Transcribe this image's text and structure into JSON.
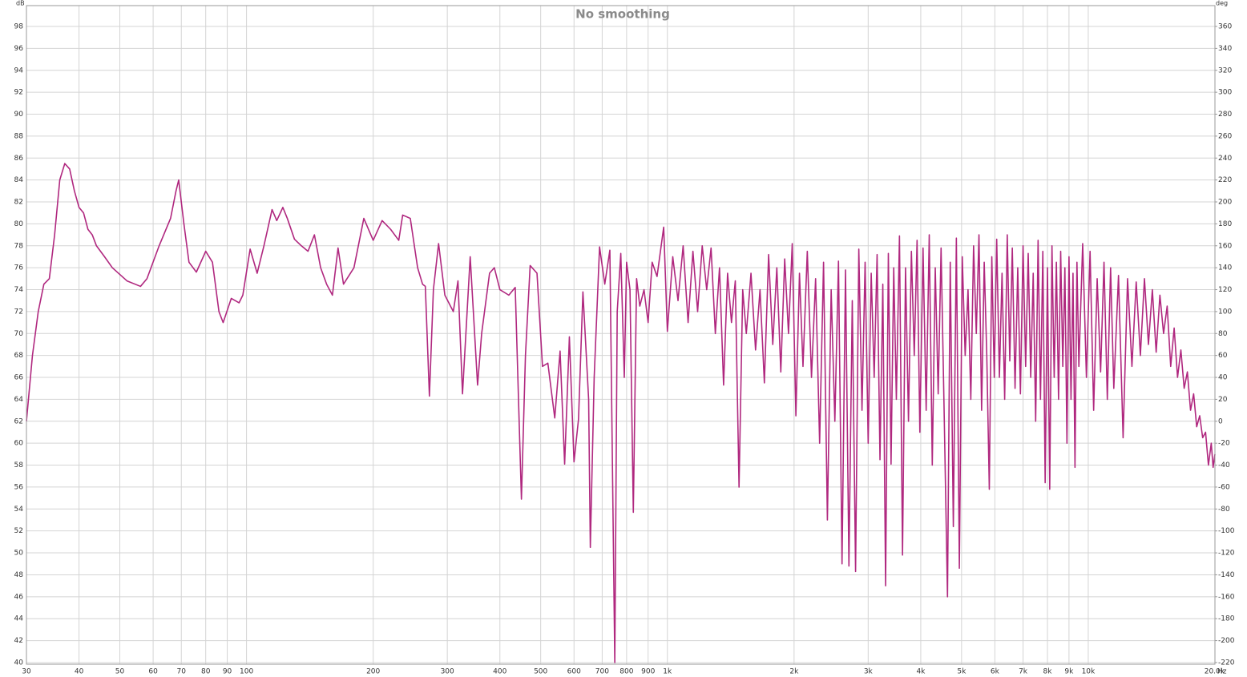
{
  "chart_data": {
    "type": "line",
    "title": "No smoothing",
    "x_label": "Hz",
    "y_label": "dB",
    "y2_label": "deg",
    "xscale": "log",
    "grid": true,
    "color": "#b0287f",
    "xlim": [
      30,
      20000
    ],
    "ylim": [
      39.85,
      99.9
    ],
    "y2lim": [
      -221.5,
      379
    ],
    "xticks": [
      30,
      40,
      50,
      60,
      70,
      80,
      90,
      100,
      200,
      300,
      400,
      500,
      600,
      700,
      800,
      900,
      {
        "value": 1000,
        "label": "1k"
      },
      {
        "value": 2000,
        "label": "2k"
      },
      {
        "value": 3000,
        "label": "3k"
      },
      {
        "value": 4000,
        "label": "4k"
      },
      {
        "value": 5000,
        "label": "5k"
      },
      {
        "value": 6000,
        "label": "6k"
      },
      {
        "value": 7000,
        "label": "7k"
      },
      {
        "value": 8000,
        "label": "8k"
      },
      {
        "value": 9000,
        "label": "9k"
      },
      {
        "value": 10000,
        "label": "10k"
      },
      {
        "value": 20000,
        "label": "20.0k"
      }
    ],
    "yticks": [
      40,
      42,
      44,
      46,
      48,
      50,
      52,
      54,
      56,
      58,
      60,
      62,
      64,
      66,
      68,
      70,
      72,
      74,
      76,
      78,
      80,
      82,
      84,
      86,
      88,
      90,
      92,
      94,
      96,
      98
    ],
    "y2ticks": [
      -220,
      -200,
      -180,
      -160,
      -140,
      -120,
      -100,
      -80,
      -60,
      -40,
      -20,
      0,
      20,
      40,
      60,
      80,
      100,
      120,
      140,
      160,
      180,
      200,
      220,
      240,
      260,
      280,
      300,
      320,
      340,
      360
    ],
    "x": [
      30,
      31,
      32,
      33,
      34,
      35,
      36,
      37,
      38,
      39,
      40,
      41,
      42,
      43,
      44,
      46,
      48,
      52,
      56,
      58,
      62,
      66,
      68,
      69,
      71,
      73,
      76,
      80,
      83,
      86,
      88,
      92,
      96,
      98,
      102,
      106,
      110,
      115,
      118,
      122,
      125,
      130,
      135,
      140,
      145,
      150,
      155,
      160,
      165,
      170,
      180,
      190,
      200,
      210,
      220,
      230,
      235,
      245,
      255,
      262,
      266,
      272,
      278,
      286,
      296,
      310,
      318,
      326,
      340,
      354,
      362,
      378,
      388,
      400,
      420,
      435,
      450,
      460,
      472,
      490,
      505,
      520,
      540,
      556,
      570,
      585,
      600,
      615,
      630,
      650,
      656,
      670,
      690,
      710,
      730,
      750,
      760,
      775,
      790,
      800,
      815,
      830,
      845,
      860,
      880,
      900,
      920,
      945,
      980,
      1000,
      1030,
      1060,
      1090,
      1120,
      1150,
      1180,
      1210,
      1240,
      1270,
      1300,
      1330,
      1360,
      1390,
      1420,
      1450,
      1480,
      1510,
      1540,
      1580,
      1620,
      1660,
      1700,
      1740,
      1780,
      1820,
      1860,
      1900,
      1940,
      1980,
      2020,
      2060,
      2100,
      2150,
      2200,
      2250,
      2300,
      2350,
      2400,
      2450,
      2500,
      2550,
      2600,
      2650,
      2700,
      2750,
      2800,
      2850,
      2900,
      2950,
      3000,
      3050,
      3100,
      3150,
      3200,
      3250,
      3300,
      3350,
      3400,
      3450,
      3500,
      3560,
      3620,
      3680,
      3740,
      3800,
      3860,
      3920,
      3980,
      4050,
      4120,
      4190,
      4260,
      4330,
      4400,
      4470,
      4550,
      4630,
      4700,
      4780,
      4860,
      4940,
      5020,
      5100,
      5180,
      5260,
      5340,
      5420,
      5500,
      5580,
      5660,
      5740,
      5820,
      5900,
      5980,
      6060,
      6150,
      6240,
      6330,
      6420,
      6510,
      6600,
      6700,
      6800,
      6900,
      7000,
      7100,
      7200,
      7300,
      7400,
      7500,
      7600,
      7700,
      7800,
      7900,
      8000,
      8100,
      8200,
      8300,
      8400,
      8500,
      8600,
      8700,
      8800,
      8900,
      9000,
      9100,
      9200,
      9300,
      9400,
      9500,
      9700,
      9900,
      10100,
      10300,
      10500,
      10700,
      10900,
      11100,
      11300,
      11500,
      11800,
      12100,
      12400,
      12700,
      13000,
      13300,
      13600,
      13900,
      14200,
      14500,
      14800,
      15100,
      15400,
      15700,
      16000,
      16300,
      16600,
      16900,
      17200,
      17500,
      17800,
      18100,
      18400,
      18700,
      19000,
      19300,
      19600,
      19800,
      20000
    ],
    "values": [
      62,
      68,
      72,
      74.5,
      75,
      79,
      84,
      85.5,
      85,
      83,
      81.5,
      81,
      79.5,
      79,
      78,
      77,
      76,
      74.8,
      74.3,
      75,
      78,
      80.5,
      83,
      84,
      80,
      76.5,
      75.6,
      77.5,
      76.5,
      72,
      71,
      73.2,
      72.8,
      73.5,
      77.7,
      75.5,
      78,
      81.3,
      80.3,
      81.5,
      80.5,
      78.6,
      78,
      77.5,
      79,
      76,
      74.5,
      73.5,
      77.8,
      74.5,
      76,
      80.5,
      78.5,
      80.3,
      79.5,
      78.5,
      80.8,
      80.5,
      76,
      74.5,
      74.3,
      64.3,
      74,
      78.2,
      73.5,
      72,
      74.8,
      64.5,
      77,
      65.3,
      70,
      75.5,
      76,
      74,
      73.5,
      74.2,
      54.9,
      68,
      76.2,
      75.5,
      67,
      67.3,
      62.3,
      68.4,
      58.1,
      69.7,
      58.3,
      62.2,
      73.8,
      64,
      50.5,
      66,
      77.9,
      74.5,
      77.6,
      40,
      72,
      77.3,
      66,
      76.5,
      74,
      53.7,
      75,
      72.5,
      74,
      71,
      76.5,
      75.2,
      79.7,
      70.2,
      77,
      73,
      78,
      71,
      77.5,
      72,
      78,
      74,
      77.8,
      70,
      76,
      65.3,
      75.5,
      71,
      74.8,
      56,
      74,
      70,
      75.5,
      68.5,
      74,
      65.5,
      77.2,
      69,
      76,
      66.5,
      76.8,
      70,
      78.2,
      62.5,
      75.5,
      67,
      77.5,
      66,
      75,
      60,
      76.5,
      53,
      74,
      62,
      76.6,
      49,
      75.8,
      48.8,
      73,
      48.3,
      77.7,
      63,
      76.5,
      60,
      75.5,
      66,
      77.2,
      58.5,
      74.5,
      47,
      77.3,
      58.1,
      76,
      64,
      78.9,
      49.8,
      76,
      62,
      77.5,
      68,
      78.5,
      61,
      77.8,
      63,
      79,
      58,
      76,
      64.5,
      77.8,
      62,
      46,
      76.5,
      52.4,
      78.7,
      48.6,
      77,
      68,
      74,
      64,
      78,
      70,
      79,
      63,
      76.5,
      68,
      55.8,
      77,
      66,
      78.6,
      66,
      75.5,
      64,
      79,
      67.5,
      77.8,
      65,
      76,
      64.5,
      78,
      67,
      77.3,
      66,
      75.5,
      62,
      78.5,
      64,
      77.5,
      56.4,
      76,
      55.8,
      78,
      66,
      76.5,
      64,
      77.5,
      67,
      76,
      60,
      77,
      64,
      75.5,
      57.8,
      76.5,
      67,
      78.2,
      66,
      77.5,
      63,
      75,
      66.5,
      76.5,
      64,
      76,
      65,
      75.3,
      60.5,
      75,
      67,
      74.7,
      68,
      75,
      69,
      74,
      68.3,
      73.5,
      70,
      72.5,
      67,
      70.5,
      66,
      68.5,
      65,
      66.5,
      63,
      64.5,
      61.5,
      62.5,
      60.5,
      61,
      58,
      60,
      57.8,
      59
    ]
  }
}
